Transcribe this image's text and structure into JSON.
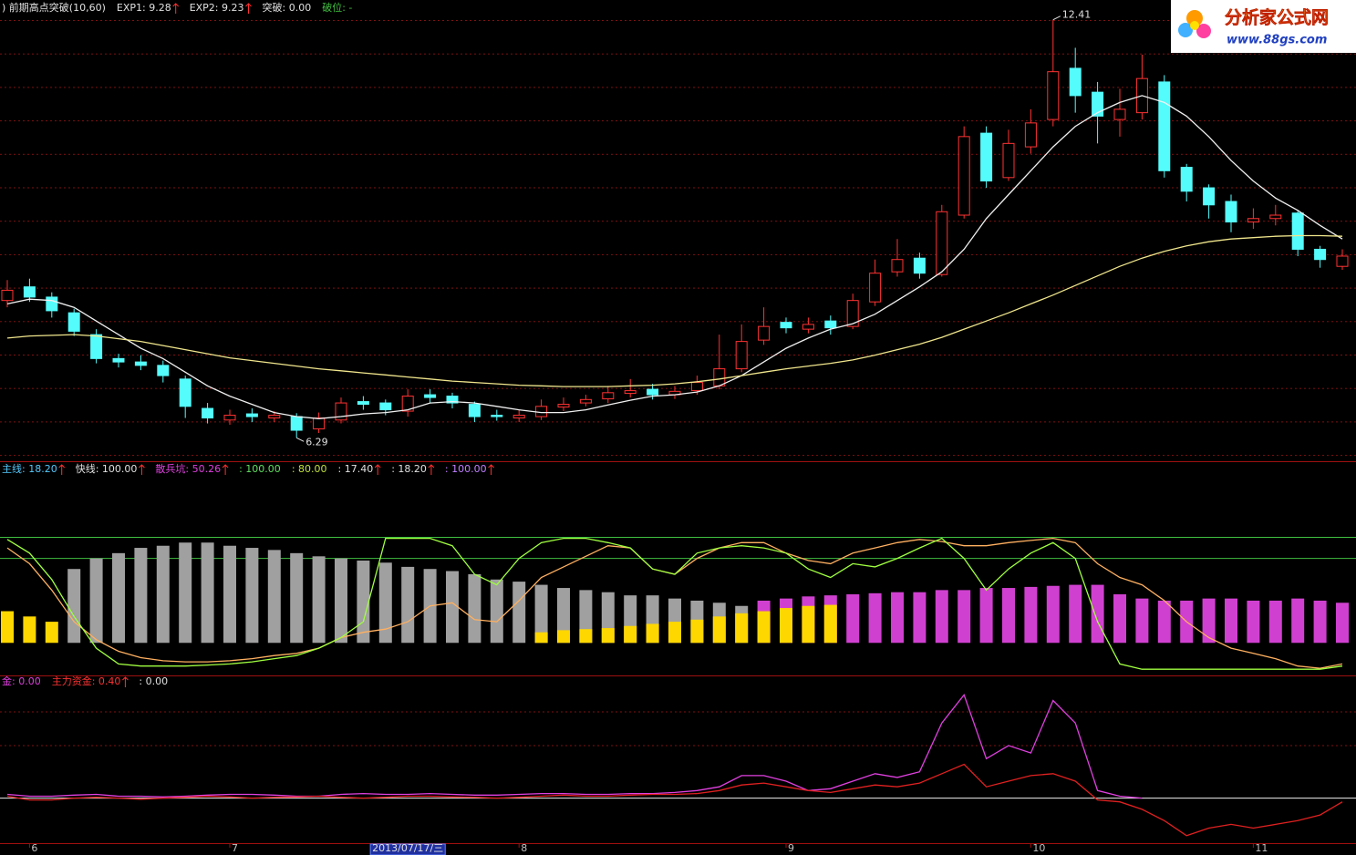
{
  "logo": {
    "name": "分析家公式网",
    "url": "www.88gs.com"
  },
  "chart_data": [
    {
      "type": "candlestick",
      "header": [
        {
          "text": ") 前期高点突破(10,60)",
          "color": "#e0e0e0",
          "arrow": false
        },
        {
          "text": "EXP1: 9.28",
          "color": "#e0e0e0",
          "arrow": true
        },
        {
          "text": "EXP2: 9.23",
          "color": "#e0e0e0",
          "arrow": true
        },
        {
          "text": "突破: 0.00",
          "color": "#e0e0e0",
          "arrow": false
        },
        {
          "text": "破位: -",
          "color": "#40c040",
          "arrow": false
        }
      ],
      "categories": [
        null,
        "6",
        null,
        null,
        null,
        null,
        null,
        null,
        null,
        null,
        "7",
        null,
        null,
        null,
        null,
        null,
        null,
        null,
        "2013/07/17/三",
        null,
        null,
        null,
        null,
        "8",
        null,
        null,
        null,
        null,
        null,
        null,
        null,
        null,
        null,
        null,
        null,
        "9",
        null,
        null,
        null,
        null,
        null,
        null,
        null,
        null,
        null,
        null,
        "10",
        null,
        null,
        null,
        null,
        null,
        null,
        null,
        null,
        null,
        "11",
        null,
        null,
        null,
        null
      ],
      "selected_index": 18,
      "open": [
        8.3,
        8.5,
        8.35,
        8.12,
        7.8,
        7.45,
        7.4,
        7.35,
        7.15,
        6.72,
        6.55,
        6.64,
        6.58,
        6.6,
        6.42,
        6.55,
        6.82,
        6.8,
        6.68,
        6.92,
        6.9,
        6.78,
        6.62,
        6.58,
        6.6,
        6.74,
        6.8,
        6.86,
        6.94,
        7.0,
        6.92,
        6.98,
        7.05,
        7.3,
        7.72,
        7.98,
        7.88,
        8.0,
        7.92,
        8.28,
        8.72,
        8.92,
        8.68,
        9.55,
        10.75,
        10.1,
        10.55,
        10.95,
        11.7,
        11.35,
        10.95,
        11.05,
        11.5,
        10.25,
        9.95,
        9.75,
        9.45,
        9.5,
        9.58,
        9.05,
        8.8
      ],
      "high": [
        8.6,
        8.62,
        8.42,
        8.18,
        7.88,
        7.52,
        7.5,
        7.42,
        7.2,
        6.8,
        6.7,
        6.72,
        6.68,
        6.65,
        6.66,
        6.88,
        6.9,
        6.85,
        7.0,
        7.0,
        6.95,
        6.82,
        6.7,
        6.7,
        6.85,
        6.88,
        6.92,
        7.05,
        7.15,
        7.08,
        7.05,
        7.2,
        7.8,
        7.95,
        8.2,
        8.05,
        8.05,
        8.08,
        8.4,
        8.9,
        9.2,
        9.0,
        9.7,
        10.85,
        10.85,
        10.8,
        11.1,
        12.41,
        12.0,
        11.5,
        11.4,
        11.9,
        11.6,
        10.3,
        10.0,
        9.85,
        9.65,
        9.7,
        9.62,
        9.1,
        9.05
      ],
      "low": [
        8.2,
        8.28,
        8.05,
        7.78,
        7.38,
        7.32,
        7.28,
        7.1,
        6.58,
        6.5,
        6.48,
        6.52,
        6.52,
        6.29,
        6.36,
        6.5,
        6.7,
        6.62,
        6.6,
        6.8,
        6.72,
        6.52,
        6.54,
        6.52,
        6.55,
        6.68,
        6.75,
        6.8,
        6.88,
        6.85,
        6.86,
        6.92,
        7.0,
        7.25,
        7.65,
        7.82,
        7.82,
        7.8,
        7.88,
        8.22,
        8.65,
        8.62,
        8.65,
        9.5,
        9.95,
        10.05,
        10.45,
        10.85,
        11.05,
        10.6,
        10.7,
        10.95,
        10.1,
        9.75,
        9.5,
        9.3,
        9.35,
        9.4,
        8.95,
        8.78,
        8.75
      ],
      "close": [
        8.45,
        8.35,
        8.15,
        7.85,
        7.45,
        7.4,
        7.35,
        7.2,
        6.75,
        6.58,
        6.62,
        6.6,
        6.62,
        6.4,
        6.58,
        6.8,
        6.78,
        6.7,
        6.9,
        6.88,
        6.8,
        6.6,
        6.6,
        6.62,
        6.75,
        6.78,
        6.85,
        6.95,
        6.98,
        6.92,
        6.97,
        7.1,
        7.3,
        7.7,
        7.92,
        7.9,
        7.95,
        7.9,
        8.3,
        8.7,
        8.9,
        8.7,
        9.6,
        10.7,
        10.05,
        10.6,
        10.9,
        11.65,
        11.3,
        11.0,
        11.1,
        11.55,
        10.2,
        9.9,
        9.7,
        9.45,
        9.5,
        9.55,
        9.05,
        8.9,
        8.95
      ],
      "up_color": "#ff3232",
      "down_color": "#54fcfc",
      "lines": [
        {
          "color": "#f0f0f0",
          "values": [
            8.25,
            8.32,
            8.3,
            8.2,
            8.0,
            7.8,
            7.6,
            7.45,
            7.25,
            7.05,
            6.9,
            6.78,
            6.66,
            6.6,
            6.57,
            6.6,
            6.64,
            6.66,
            6.7,
            6.8,
            6.82,
            6.8,
            6.75,
            6.7,
            6.66,
            6.66,
            6.7,
            6.77,
            6.84,
            6.9,
            6.92,
            6.96,
            7.05,
            7.2,
            7.4,
            7.6,
            7.75,
            7.88,
            7.96,
            8.1,
            8.3,
            8.5,
            8.72,
            9.05,
            9.5,
            9.85,
            10.2,
            10.55,
            10.85,
            11.05,
            11.2,
            11.3,
            11.2,
            11.0,
            10.7,
            10.35,
            10.05,
            9.8,
            9.62,
            9.4,
            9.2
          ]
        },
        {
          "color": "#f0e68c",
          "values": [
            7.75,
            7.78,
            7.79,
            7.8,
            7.78,
            7.74,
            7.7,
            7.64,
            7.58,
            7.52,
            7.46,
            7.42,
            7.38,
            7.34,
            7.3,
            7.27,
            7.24,
            7.21,
            7.18,
            7.15,
            7.12,
            7.1,
            7.08,
            7.06,
            7.05,
            7.04,
            7.04,
            7.04,
            7.05,
            7.06,
            7.08,
            7.11,
            7.15,
            7.2,
            7.25,
            7.3,
            7.34,
            7.38,
            7.43,
            7.5,
            7.58,
            7.66,
            7.76,
            7.88,
            8.0,
            8.12,
            8.25,
            8.38,
            8.52,
            8.66,
            8.8,
            8.92,
            9.02,
            9.1,
            9.16,
            9.2,
            9.22,
            9.24,
            9.25,
            9.25,
            9.24
          ]
        }
      ],
      "ylim": [
        5.96,
        12.7
      ]
    },
    {
      "type": "indicator",
      "header": [
        {
          "text": "主线: 18.20",
          "color": "#54c8fc",
          "arrow": true
        },
        {
          "text": "快线: 100.00",
          "color": "#e0e0e0",
          "arrow": true
        },
        {
          "text": "散兵坑: 50.26",
          "color": "#e040e0",
          "arrow": true
        },
        {
          "text": ": 100.00",
          "color": "#60e060",
          "arrow": false
        },
        {
          "text": ": 80.00",
          "color": "#c0e040",
          "arrow": false
        },
        {
          "text": ": 17.40",
          "color": "#e0e0e0",
          "arrow": true
        },
        {
          "text": ": 18.20",
          "color": "#e0e0e0",
          "arrow": true
        },
        {
          "text": ": 100.00",
          "color": "#c080ff",
          "arrow": true
        }
      ],
      "bars": [
        {
          "color": "#a0a0a0",
          "values": [
            null,
            null,
            null,
            70,
            80,
            85,
            90,
            92,
            95,
            95,
            92,
            90,
            88,
            85,
            82,
            80,
            78,
            76,
            72,
            70,
            68,
            65,
            60,
            58,
            55,
            52,
            50,
            48,
            45,
            45,
            42,
            40,
            38,
            35,
            null,
            null,
            null,
            null,
            null,
            null,
            null,
            null,
            null,
            null,
            null,
            null,
            null,
            null,
            null,
            null,
            null,
            null,
            null,
            null,
            null,
            null,
            null,
            null,
            null,
            null,
            null
          ]
        },
        {
          "color": "#d040d0",
          "values": [
            null,
            null,
            null,
            null,
            null,
            null,
            null,
            null,
            null,
            null,
            null,
            null,
            null,
            null,
            null,
            null,
            null,
            null,
            null,
            null,
            null,
            null,
            null,
            null,
            null,
            null,
            null,
            null,
            null,
            null,
            null,
            null,
            null,
            null,
            40,
            42,
            44,
            45,
            46,
            47,
            48,
            48,
            50,
            50,
            52,
            52,
            53,
            54,
            55,
            55,
            46,
            42,
            40,
            40,
            42,
            42,
            40,
            40,
            42,
            40,
            38
          ]
        },
        {
          "color": "#ffd700",
          "values": [
            30,
            25,
            20,
            null,
            null,
            null,
            null,
            null,
            null,
            null,
            null,
            null,
            null,
            null,
            null,
            null,
            null,
            null,
            null,
            null,
            null,
            null,
            null,
            null,
            10,
            12,
            13,
            14,
            16,
            18,
            20,
            22,
            25,
            28,
            30,
            33,
            35,
            36,
            null,
            null,
            null,
            null,
            null,
            null,
            null,
            null,
            null,
            null,
            null,
            null,
            null,
            null,
            null,
            null,
            null,
            null,
            null,
            null,
            null,
            null,
            null
          ]
        }
      ],
      "lines": [
        {
          "color": "#ffb060",
          "values": [
            90,
            75,
            50,
            20,
            3,
            -8,
            -14,
            -17,
            -18,
            -18,
            -17,
            -15,
            -12,
            -10,
            -5,
            5,
            10,
            13,
            20,
            35,
            38,
            22,
            20,
            40,
            62,
            72,
            82,
            92,
            90,
            70,
            65,
            80,
            90,
            95,
            95,
            85,
            78,
            75,
            85,
            90,
            95,
            98,
            96,
            92,
            92,
            95,
            97,
            99,
            95,
            75,
            62,
            55,
            40,
            20,
            5,
            -5,
            -10,
            -15,
            -22,
            -24,
            -20
          ]
        },
        {
          "color": "#a0ff40",
          "values": [
            98,
            85,
            60,
            25,
            -5,
            -20,
            -22,
            -22,
            -22,
            -21,
            -20,
            -18,
            -15,
            -12,
            -5,
            5,
            20,
            99,
            99,
            99,
            92,
            65,
            55,
            80,
            95,
            99,
            99,
            95,
            90,
            70,
            65,
            85,
            90,
            92,
            90,
            85,
            70,
            62,
            75,
            72,
            80,
            90,
            99,
            80,
            50,
            70,
            85,
            95,
            80,
            20,
            -20,
            -25,
            -25,
            -25,
            -25,
            -25,
            -25,
            -25,
            -25,
            -25,
            -22
          ]
        }
      ],
      "hlines": [
        {
          "value": 100,
          "color": "#40c040"
        },
        {
          "value": 80,
          "color": "#40c040"
        }
      ],
      "ylim": [
        -30,
        160
      ]
    },
    {
      "type": "flow",
      "header": [
        {
          "text": "金: 0.00",
          "color": "#e040e0",
          "arrow": false
        },
        {
          "text": "主力资金: 0.40",
          "color": "#ff3232",
          "arrow": true
        },
        {
          "text": ": 0.00",
          "color": "#e0e0e0",
          "arrow": false
        }
      ],
      "lines": [
        {
          "color": "#e040e0",
          "values": [
            0.1,
            0.05,
            0.05,
            0.08,
            0.1,
            0.05,
            0.05,
            0.03,
            0.05,
            0.08,
            0.1,
            0.1,
            0.08,
            0.05,
            0.05,
            0.1,
            0.12,
            0.1,
            0.1,
            0.12,
            0.1,
            0.08,
            0.08,
            0.1,
            0.12,
            0.12,
            0.1,
            0.1,
            0.12,
            0.12,
            0.15,
            0.2,
            0.3,
            0.6,
            0.6,
            0.45,
            0.2,
            0.25,
            0.45,
            0.65,
            0.55,
            0.7,
            2.0,
            2.75,
            1.05,
            1.4,
            1.2,
            2.6,
            2.0,
            0.2,
            0.05,
            0.0,
            null,
            null,
            null,
            null,
            null,
            null,
            null,
            null,
            null
          ]
        },
        {
          "color": "#e02020",
          "values": [
            0.05,
            -0.05,
            -0.05,
            0,
            0.02,
            0,
            -0.03,
            0,
            0.02,
            0.05,
            0.03,
            0,
            0.02,
            0.03,
            0.05,
            0.02,
            0,
            0.02,
            0.05,
            0.05,
            0.03,
            0.02,
            0,
            0.02,
            0.05,
            0.08,
            0.05,
            0.05,
            0.08,
            0.1,
            0.1,
            0.12,
            0.2,
            0.35,
            0.4,
            0.3,
            0.2,
            0.15,
            0.25,
            0.35,
            0.3,
            0.4,
            0.65,
            0.9,
            0.3,
            0.45,
            0.6,
            0.65,
            0.45,
            -0.05,
            -0.1,
            -0.3,
            -0.6,
            -1.0,
            -0.8,
            -0.7,
            -0.8,
            -0.7,
            -0.6,
            -0.45,
            -0.1
          ]
        }
      ],
      "hline": {
        "value": 0,
        "color": "#f0f0f0"
      },
      "ylim": [
        -1.2,
        3.0
      ]
    }
  ]
}
